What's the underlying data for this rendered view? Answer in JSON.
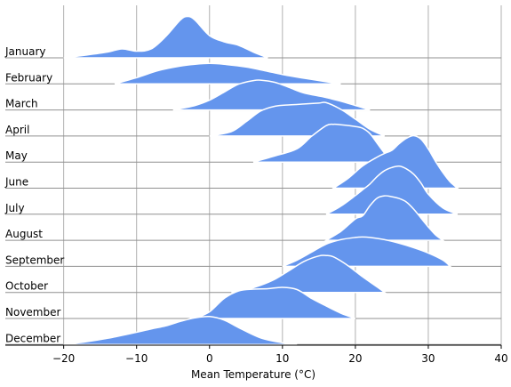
{
  "chart_data": {
    "type": "area",
    "subtype": "ridgeline",
    "title": "",
    "xlabel": "Mean Temperature (°C)",
    "ylabel": "",
    "xlim": [
      -28,
      40
    ],
    "xticks": [
      -20,
      -10,
      0,
      10,
      20,
      30,
      40
    ],
    "xtick_labels": [
      "−20",
      "−10",
      "0",
      "10",
      "20",
      "30",
      "40"
    ],
    "grid": "vertical",
    "fill_color": "#6495ED",
    "series": [
      {
        "name": "January",
        "x": [
          -20,
          -17,
          -14,
          -12,
          -10,
          -8,
          -6,
          -4,
          -3,
          -2,
          0,
          2,
          4,
          6,
          8
        ],
        "y": [
          0,
          0.06,
          0.13,
          0.2,
          0.15,
          0.2,
          0.48,
          0.85,
          0.93,
          0.85,
          0.5,
          0.36,
          0.28,
          0.13,
          0
        ]
      },
      {
        "name": "February",
        "x": [
          -13,
          -10,
          -7,
          -4,
          -2,
          0,
          2,
          5,
          8,
          11,
          14,
          18
        ],
        "y": [
          0,
          0.14,
          0.3,
          0.4,
          0.44,
          0.46,
          0.44,
          0.38,
          0.28,
          0.18,
          0.1,
          0
        ]
      },
      {
        "name": "March",
        "x": [
          -5,
          -2,
          0,
          2,
          4,
          6,
          7,
          9,
          11,
          13,
          16,
          19,
          22
        ],
        "y": [
          0,
          0.1,
          0.22,
          0.4,
          0.58,
          0.66,
          0.67,
          0.62,
          0.5,
          0.38,
          0.28,
          0.15,
          0
        ]
      },
      {
        "name": "April",
        "x": [
          0,
          3,
          5,
          7,
          9,
          11,
          13,
          15,
          16,
          18,
          20,
          22,
          24
        ],
        "y": [
          0,
          0.1,
          0.32,
          0.56,
          0.67,
          0.7,
          0.72,
          0.74,
          0.75,
          0.6,
          0.38,
          0.15,
          0
        ]
      },
      {
        "name": "May",
        "x": [
          6,
          9,
          12,
          14,
          16,
          17,
          18,
          20,
          21,
          22,
          23,
          24,
          25
        ],
        "y": [
          0,
          0.14,
          0.3,
          0.58,
          0.82,
          0.85,
          0.84,
          0.8,
          0.76,
          0.64,
          0.42,
          0.2,
          0
        ]
      },
      {
        "name": "June",
        "x": [
          17,
          19,
          21,
          23,
          24,
          25,
          26,
          27,
          28,
          29,
          30,
          31,
          32,
          33,
          34
        ],
        "y": [
          0,
          0.22,
          0.5,
          0.7,
          0.78,
          0.85,
          1.0,
          1.12,
          1.18,
          1.1,
          0.88,
          0.6,
          0.35,
          0.14,
          0
        ]
      },
      {
        "name": "July",
        "x": [
          16,
          18,
          20,
          21,
          22,
          23,
          24,
          25,
          26,
          27,
          28,
          29,
          30,
          32,
          34
        ],
        "y": [
          0,
          0.18,
          0.42,
          0.55,
          0.68,
          0.85,
          0.98,
          1.05,
          1.08,
          1.02,
          0.9,
          0.7,
          0.45,
          0.14,
          0
        ]
      },
      {
        "name": "August",
        "x": [
          16,
          18,
          20,
          21,
          22,
          23,
          24,
          25,
          26,
          27,
          28,
          29,
          30,
          31,
          32
        ],
        "y": [
          0,
          0.2,
          0.48,
          0.55,
          0.78,
          0.95,
          1.0,
          0.98,
          0.94,
          0.86,
          0.7,
          0.5,
          0.3,
          0.12,
          0
        ]
      },
      {
        "name": "September",
        "x": [
          10,
          12,
          14,
          16,
          18,
          20,
          21,
          22,
          24,
          26,
          28,
          30,
          32,
          33
        ],
        "y": [
          0,
          0.14,
          0.32,
          0.5,
          0.6,
          0.65,
          0.66,
          0.65,
          0.6,
          0.52,
          0.42,
          0.3,
          0.14,
          0
        ]
      },
      {
        "name": "October",
        "x": [
          3,
          5,
          7,
          9,
          11,
          13,
          15,
          16,
          17,
          19,
          21,
          23,
          24
        ],
        "y": [
          0,
          0.06,
          0.16,
          0.3,
          0.5,
          0.7,
          0.82,
          0.83,
          0.8,
          0.6,
          0.35,
          0.12,
          0
        ]
      },
      {
        "name": "November",
        "x": [
          -2,
          0,
          2,
          4,
          6,
          8,
          10,
          12,
          14,
          16,
          18,
          20
        ],
        "y": [
          0,
          0.15,
          0.45,
          0.62,
          0.66,
          0.67,
          0.7,
          0.65,
          0.45,
          0.28,
          0.12,
          0
        ]
      },
      {
        "name": "December",
        "x": [
          -20,
          -17,
          -14,
          -11,
          -8,
          -6,
          -4,
          -2,
          0,
          2,
          4,
          7,
          10,
          12
        ],
        "y": [
          0,
          0.06,
          0.14,
          0.24,
          0.35,
          0.42,
          0.52,
          0.6,
          0.63,
          0.55,
          0.38,
          0.15,
          0.04,
          0
        ]
      }
    ]
  }
}
